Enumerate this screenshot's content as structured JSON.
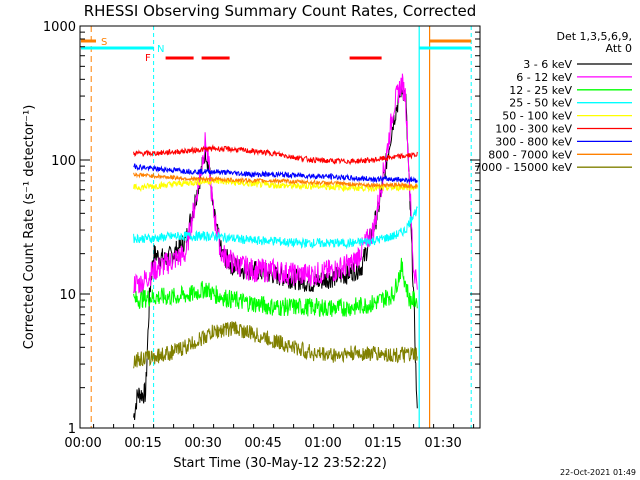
{
  "chart_data": {
    "type": "line",
    "title": "RHESSI Observing Summary Count Rates, Corrected",
    "xlabel": "Start Time (30-May-12 23:52:22)",
    "ylabel": "Corrected Count Rate (s⁻¹ detector⁻¹)",
    "yscale": "log",
    "ylim": [
      1,
      1000
    ],
    "xlim_minutes": [
      -8.4,
      91.6
    ],
    "x_tick_labels": [
      "00:00",
      "00:15",
      "00:30",
      "00:45",
      "01:00",
      "01:15",
      "01:30"
    ],
    "y_tick_labels": [
      "1",
      "10",
      "100",
      "1000"
    ],
    "legend_header": [
      "Det 1,3,5,6,9,",
      "Att 0"
    ],
    "legend_position": "right",
    "footer": "22-Oct-2021 01:49",
    "series": [
      {
        "name": "3 - 6 keV",
        "color": "#000000",
        "start_min": 5,
        "end_min": 76,
        "points": [
          [
            5,
            1.2
          ],
          [
            6,
            1.8
          ],
          [
            8,
            1.8
          ],
          [
            9,
            10
          ],
          [
            10,
            20
          ],
          [
            13,
            18
          ],
          [
            15,
            20
          ],
          [
            18,
            25
          ],
          [
            21,
            60
          ],
          [
            23,
            120
          ],
          [
            24,
            80
          ],
          [
            25,
            40
          ],
          [
            27,
            20
          ],
          [
            30,
            16
          ],
          [
            35,
            15
          ],
          [
            40,
            14
          ],
          [
            45,
            13
          ],
          [
            50,
            12
          ],
          [
            53,
            13
          ],
          [
            58,
            14
          ],
          [
            62,
            16
          ],
          [
            66,
            40
          ],
          [
            70,
            200
          ],
          [
            72,
            350
          ],
          [
            73,
            300
          ],
          [
            75,
            10
          ],
          [
            76,
            1
          ]
        ]
      },
      {
        "name": "6 - 12 keV",
        "color": "#ff00ff",
        "start_min": 5,
        "end_min": 76,
        "points": [
          [
            5,
            12
          ],
          [
            7,
            12
          ],
          [
            10,
            15
          ],
          [
            15,
            18
          ],
          [
            18,
            20
          ],
          [
            21,
            60
          ],
          [
            23,
            140
          ],
          [
            24,
            80
          ],
          [
            25,
            40
          ],
          [
            27,
            20
          ],
          [
            30,
            17
          ],
          [
            35,
            15
          ],
          [
            40,
            15
          ],
          [
            45,
            14
          ],
          [
            50,
            14
          ],
          [
            55,
            15
          ],
          [
            60,
            17
          ],
          [
            65,
            30
          ],
          [
            68,
            100
          ],
          [
            70,
            250
          ],
          [
            72,
            380
          ],
          [
            73,
            300
          ],
          [
            75,
            15
          ],
          [
            76,
            13
          ]
        ]
      },
      {
        "name": "12 - 25 keV",
        "color": "#00ff00",
        "start_min": 5,
        "end_min": 76,
        "points": [
          [
            5,
            9
          ],
          [
            10,
            9.5
          ],
          [
            15,
            9.5
          ],
          [
            20,
            10
          ],
          [
            23,
            11
          ],
          [
            25,
            10
          ],
          [
            30,
            9
          ],
          [
            35,
            8.5
          ],
          [
            40,
            8
          ],
          [
            45,
            8
          ],
          [
            50,
            8
          ],
          [
            55,
            7.8
          ],
          [
            60,
            8
          ],
          [
            65,
            8.5
          ],
          [
            70,
            10
          ],
          [
            72,
            16
          ],
          [
            74,
            9
          ],
          [
            76,
            9
          ]
        ]
      },
      {
        "name": "25 - 50 keV",
        "color": "#00ffff",
        "start_min": 5,
        "end_min": 76,
        "points": [
          [
            5,
            26
          ],
          [
            10,
            26
          ],
          [
            15,
            27
          ],
          [
            20,
            27
          ],
          [
            25,
            27
          ],
          [
            30,
            26
          ],
          [
            35,
            25
          ],
          [
            40,
            25
          ],
          [
            45,
            24
          ],
          [
            50,
            24
          ],
          [
            55,
            24
          ],
          [
            60,
            24
          ],
          [
            65,
            25
          ],
          [
            70,
            27
          ],
          [
            73,
            30
          ],
          [
            75,
            40
          ],
          [
            76,
            42
          ]
        ]
      },
      {
        "name": "50 - 100 keV",
        "color": "#ffff00",
        "start_min": 5,
        "end_min": 76,
        "points": [
          [
            5,
            62
          ],
          [
            10,
            64
          ],
          [
            15,
            66
          ],
          [
            20,
            68
          ],
          [
            25,
            70
          ],
          [
            30,
            68
          ],
          [
            35,
            66
          ],
          [
            40,
            65
          ],
          [
            45,
            64
          ],
          [
            50,
            64
          ],
          [
            55,
            63
          ],
          [
            60,
            62
          ],
          [
            65,
            62
          ],
          [
            70,
            62
          ],
          [
            74,
            63
          ],
          [
            76,
            63
          ]
        ]
      },
      {
        "name": "100 - 300 keV",
        "color": "#ff0000",
        "start_min": 5,
        "end_min": 76,
        "points": [
          [
            5,
            112
          ],
          [
            10,
            112
          ],
          [
            15,
            115
          ],
          [
            20,
            118
          ],
          [
            25,
            122
          ],
          [
            30,
            120
          ],
          [
            35,
            116
          ],
          [
            40,
            112
          ],
          [
            45,
            105
          ],
          [
            50,
            100
          ],
          [
            55,
            98
          ],
          [
            60,
            98
          ],
          [
            65,
            100
          ],
          [
            70,
            105
          ],
          [
            74,
            108
          ],
          [
            76,
            110
          ]
        ]
      },
      {
        "name": "300 - 800 keV",
        "color": "#0000ff",
        "start_min": 5,
        "end_min": 76,
        "points": [
          [
            5,
            90
          ],
          [
            10,
            86
          ],
          [
            15,
            84
          ],
          [
            20,
            82
          ],
          [
            25,
            82
          ],
          [
            30,
            80
          ],
          [
            35,
            78
          ],
          [
            40,
            78
          ],
          [
            45,
            77
          ],
          [
            50,
            76
          ],
          [
            55,
            75
          ],
          [
            60,
            73
          ],
          [
            65,
            72
          ],
          [
            70,
            72
          ],
          [
            74,
            71
          ],
          [
            76,
            71
          ]
        ]
      },
      {
        "name": "800 - 7000 keV",
        "color": "#ff8000",
        "start_min": 5,
        "end_min": 76,
        "points": [
          [
            5,
            78
          ],
          [
            10,
            76
          ],
          [
            15,
            74
          ],
          [
            20,
            72
          ],
          [
            25,
            72
          ],
          [
            30,
            71
          ],
          [
            35,
            70
          ],
          [
            40,
            70
          ],
          [
            45,
            69
          ],
          [
            50,
            68
          ],
          [
            55,
            67
          ],
          [
            60,
            66
          ],
          [
            65,
            65
          ],
          [
            70,
            65
          ],
          [
            74,
            64
          ],
          [
            76,
            64
          ]
        ]
      },
      {
        "name": "7000 - 15000 keV",
        "color": "#808000",
        "start_min": 5,
        "end_min": 76,
        "points": [
          [
            5,
            3.2
          ],
          [
            10,
            3.4
          ],
          [
            15,
            3.7
          ],
          [
            20,
            4.3
          ],
          [
            25,
            5.2
          ],
          [
            30,
            5.6
          ],
          [
            35,
            5
          ],
          [
            40,
            4.5
          ],
          [
            45,
            4
          ],
          [
            50,
            3.6
          ],
          [
            55,
            3.5
          ],
          [
            60,
            3.6
          ],
          [
            65,
            3.6
          ],
          [
            70,
            3.5
          ],
          [
            74,
            3.5
          ],
          [
            76,
            3.5
          ]
        ]
      }
    ],
    "annotations": [
      {
        "label": "S",
        "color": "#ff8000"
      },
      {
        "label": "N",
        "color": "#00ffff"
      },
      {
        "label": "F",
        "color": "#ff0000"
      }
    ]
  }
}
